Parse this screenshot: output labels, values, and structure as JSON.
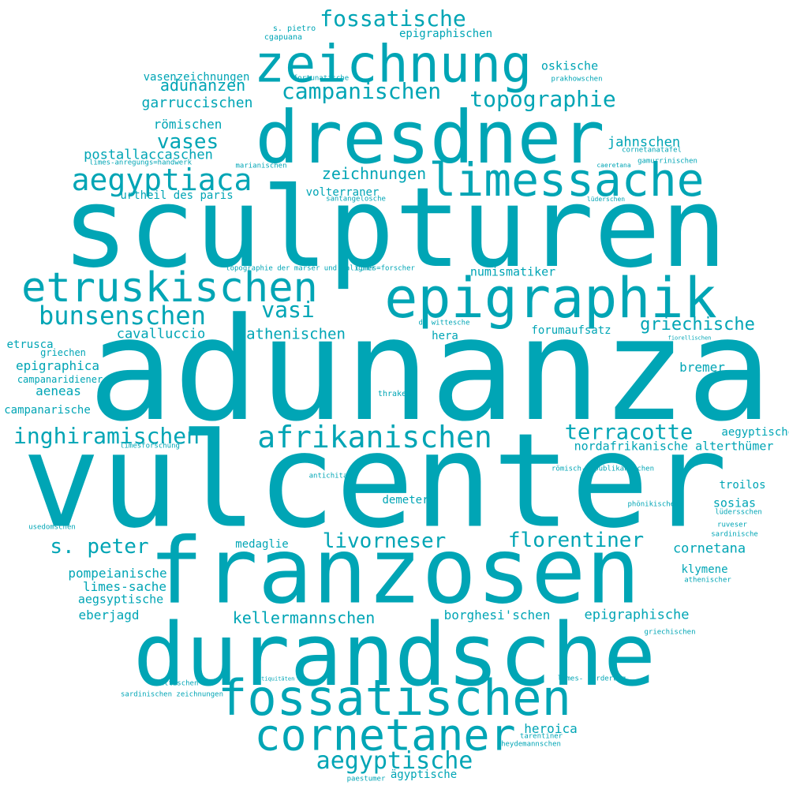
{
  "color": "#00a5b5",
  "words": [
    {
      "text": "adunanza",
      "size": 1.0
    },
    {
      "text": "vulcenter",
      "size": 0.9
    },
    {
      "text": "sculpturen",
      "size": 0.78
    },
    {
      "text": "franzosen",
      "size": 0.66
    },
    {
      "text": "durandsche",
      "size": 0.6
    },
    {
      "text": "dresdner",
      "size": 0.52
    },
    {
      "text": "epigraphik",
      "size": 0.43
    },
    {
      "text": "fossatischen",
      "size": 0.4
    },
    {
      "text": "zeichnung",
      "size": 0.38
    },
    {
      "text": "limessache",
      "size": 0.3
    },
    {
      "text": "etruskischen",
      "size": 0.28
    },
    {
      "text": "cornetaner",
      "size": 0.3
    },
    {
      "text": "aegyptiaca",
      "size": 0.2
    },
    {
      "text": "afrikanischen",
      "size": 0.2
    },
    {
      "text": "bunsenschen",
      "size": 0.17
    },
    {
      "text": "aegyptische",
      "size": 0.16
    },
    {
      "text": "inghiramischen",
      "size": 0.15
    },
    {
      "text": "terracotte",
      "size": 0.15
    },
    {
      "text": "campanischen",
      "size": 0.15
    },
    {
      "text": "fossatische",
      "size": 0.15
    },
    {
      "text": "topographie",
      "size": 0.14
    },
    {
      "text": "vasi",
      "size": 0.16
    },
    {
      "text": "vases",
      "size": 0.14
    },
    {
      "text": "livorneser",
      "size": 0.14
    },
    {
      "text": "florentiner",
      "size": 0.14
    },
    {
      "text": "s. peter",
      "size": 0.14
    },
    {
      "text": "adunanzen",
      "size": 0.12
    },
    {
      "text": "zeichnungen",
      "size": 0.12
    },
    {
      "text": "griechische",
      "size": 0.12
    },
    {
      "text": "kellermannschen",
      "size": 0.12
    },
    {
      "text": "garruccischen",
      "size": 0.1
    },
    {
      "text": "postallaccaschen",
      "size": 0.1
    },
    {
      "text": "athenischen",
      "size": 0.11
    },
    {
      "text": "cavalluccio",
      "size": 0.1
    },
    {
      "text": "jahnschen",
      "size": 0.1
    },
    {
      "text": "römischen",
      "size": 0.09
    },
    {
      "text": "epigraphische",
      "size": 0.1
    },
    {
      "text": "pompeianische",
      "size": 0.1
    },
    {
      "text": "limes-sache",
      "size": 0.09
    },
    {
      "text": "cornetana",
      "size": 0.1
    },
    {
      "text": "aeneas",
      "size": 0.09
    },
    {
      "text": "heroica",
      "size": 0.09
    },
    {
      "text": "borghesi'schen",
      "size": 0.09
    },
    {
      "text": "epigraphica",
      "size": 0.08
    },
    {
      "text": "sosias",
      "size": 0.08
    },
    {
      "text": "nordafrikanische alterthümer",
      "size": 0.08
    },
    {
      "text": "volterraner",
      "size": 0.08
    },
    {
      "text": "medaglie",
      "size": 0.08
    },
    {
      "text": "aegsyptische",
      "size": 0.08
    },
    {
      "text": "eberjagd",
      "size": 0.08
    },
    {
      "text": "bremer",
      "size": 0.08
    },
    {
      "text": "numismatiker",
      "size": 0.08
    },
    {
      "text": "urtheil des paris",
      "size": 0.08
    },
    {
      "text": "oskische",
      "size": 0.08
    },
    {
      "text": "epigraphischen",
      "size": 0.08
    },
    {
      "text": "vasenzeichnungen",
      "size": 0.08
    },
    {
      "text": "etrusca",
      "size": 0.07
    },
    {
      "text": "hera",
      "size": 0.07
    },
    {
      "text": "forumaufsatz",
      "size": 0.07
    },
    {
      "text": "aegyptisches",
      "size": 0.07
    },
    {
      "text": "troilos",
      "size": 0.07
    },
    {
      "text": "klymene",
      "size": 0.07
    },
    {
      "text": "demeter",
      "size": 0.07
    },
    {
      "text": "griechen",
      "size": 0.07
    },
    {
      "text": "campanaridiener",
      "size": 0.06
    },
    {
      "text": "campanarische",
      "size": 0.06
    },
    {
      "text": "ägyptische",
      "size": 0.07
    },
    {
      "text": "s. pietro",
      "size": 0.07
    },
    {
      "text": "cgapuana",
      "size": 0.05
    },
    {
      "text": "fortunatische",
      "size": 0.05
    },
    {
      "text": "prakhowschen",
      "size": 0.05
    },
    {
      "text": "cornetanatafel",
      "size": 0.05
    },
    {
      "text": "gamurrinischen",
      "size": 0.05
    },
    {
      "text": "caeretana",
      "size": 0.05
    },
    {
      "text": "limes-anregungs=handwerk",
      "size": 0.04
    },
    {
      "text": "marianischen",
      "size": 0.05
    },
    {
      "text": "santangelosche",
      "size": 0.05
    },
    {
      "text": "lüderschen",
      "size": 0.05
    },
    {
      "text": "topographie der marser und paligner",
      "size": 0.04
    },
    {
      "text": "limes=forscher",
      "size": 0.05
    },
    {
      "text": "de wittesche",
      "size": 0.05
    },
    {
      "text": "fiorellischen",
      "size": 0.05
    },
    {
      "text": "limesforschung",
      "size": 0.04
    },
    {
      "text": "römisch-republikanischen",
      "size": 0.05
    },
    {
      "text": "antichita",
      "size": 0.05
    },
    {
      "text": "phönikischen",
      "size": 0.05
    },
    {
      "text": "lüdersschen",
      "size": 0.05
    },
    {
      "text": "usedomschen",
      "size": 0.05
    },
    {
      "text": "ruveser",
      "size": 0.05
    },
    {
      "text": "sardinische",
      "size": 0.05
    },
    {
      "text": "athenischer",
      "size": 0.05
    },
    {
      "text": "griechischen",
      "size": 0.05
    },
    {
      "text": "attischen",
      "size": 0.05
    },
    {
      "text": "antiquitäten",
      "size": 0.05
    },
    {
      "text": "limes- forderung",
      "size": 0.04
    },
    {
      "text": "sardinischen zeichnungen",
      "size": 0.05
    },
    {
      "text": "tarentiner",
      "size": 0.05
    },
    {
      "text": "heydemannschen",
      "size": 0.05
    },
    {
      "text": "paestumer",
      "size": 0.05
    },
    {
      "text": "thraken",
      "size": 0.05
    }
  ]
}
